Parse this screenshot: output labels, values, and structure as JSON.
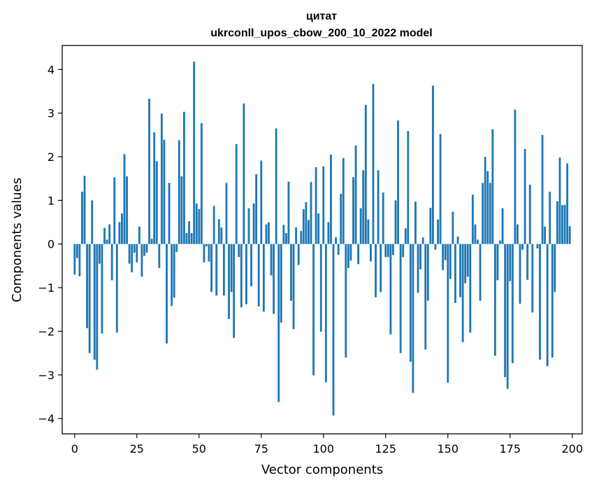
{
  "chart_data": {
    "type": "bar",
    "title_line1": "цитат",
    "title_line2": "ukrconll_upos_cbow_200_10_2022 model",
    "xlabel": "Vector components",
    "ylabel": "Components values",
    "xlim": [
      -5,
      204
    ],
    "ylim": [
      -4.35,
      4.55
    ],
    "x_ticks": [
      0,
      25,
      50,
      75,
      100,
      125,
      150,
      175,
      200
    ],
    "x_tick_labels": [
      "0",
      "25",
      "50",
      "75",
      "100",
      "125",
      "150",
      "175",
      "200"
    ],
    "y_ticks": [
      -4,
      -3,
      -2,
      -1,
      0,
      1,
      2,
      3,
      4
    ],
    "y_tick_labels": [
      "−4",
      "−3",
      "−2",
      "−1",
      "0",
      "1",
      "2",
      "3",
      "4"
    ],
    "bar_color": "#1f77b4",
    "grid": false,
    "values": [
      -0.7,
      -0.32,
      -0.74,
      1.2,
      1.56,
      -1.93,
      -2.5,
      1.0,
      -2.65,
      -2.88,
      -0.45,
      -2.05,
      0.37,
      0.1,
      0.45,
      -0.83,
      1.53,
      -2.03,
      0.5,
      0.7,
      2.06,
      1.55,
      -0.45,
      -0.65,
      -0.2,
      -0.42,
      0.4,
      -0.75,
      -0.27,
      -0.2,
      3.33,
      0.12,
      2.56,
      1.9,
      -0.55,
      2.99,
      2.39,
      -2.28,
      1.4,
      -1.42,
      -1.23,
      -0.18,
      2.38,
      1.55,
      3.03,
      0.25,
      0.52,
      0.25,
      4.18,
      0.93,
      0.8,
      2.77,
      -0.42,
      -0.05,
      -0.4,
      -1.1,
      0.87,
      -1.18,
      0.57,
      0.38,
      -1.18,
      1.4,
      -1.72,
      -1.1,
      -2.15,
      2.29,
      -0.3,
      -1.45,
      3.22,
      -1.38,
      0.82,
      -0.97,
      0.93,
      1.6,
      -1.43,
      1.91,
      -1.55,
      0.45,
      0.5,
      -0.72,
      -1.6,
      2.65,
      -3.62,
      -1.8,
      0.44,
      0.25,
      1.43,
      -1.3,
      -1.95,
      0.38,
      -0.48,
      0.3,
      0.8,
      0.96,
      0.55,
      1.42,
      -3.01,
      1.76,
      0.7,
      -2.01,
      1.78,
      -3.17,
      0.5,
      2.05,
      -3.93,
      0.15,
      -0.25,
      1.15,
      1.97,
      -2.6,
      -0.55,
      -0.38,
      1.53,
      2.26,
      -0.46,
      0.82,
      1.69,
      3.19,
      0.56,
      -0.4,
      3.67,
      -1.22,
      1.69,
      -1.1,
      1.18,
      -0.3,
      -0.3,
      -2.07,
      -0.25,
      1.0,
      2.83,
      -2.5,
      -0.3,
      0.36,
      2.59,
      -2.7,
      -3.41,
      0.97,
      -1.12,
      -0.58,
      0.15,
      -2.42,
      -1.3,
      0.83,
      3.63,
      -0.13,
      0.56,
      2.52,
      -0.6,
      -0.37,
      -3.18,
      -0.8,
      0.74,
      -1.35,
      0.17,
      -1.22,
      -2.25,
      -0.9,
      -0.75,
      -2.03,
      1.13,
      0.45,
      0.1,
      -1.3,
      1.4,
      2.0,
      1.67,
      1.4,
      2.63,
      -2.56,
      -0.83,
      0.08,
      0.82,
      -3.05,
      -3.32,
      -0.85,
      -2.73,
      3.08,
      0.45,
      -1.37,
      -0.13,
      2.18,
      -0.82,
      1.36,
      -1.57,
      0.0,
      -0.1,
      -2.65,
      2.5,
      0.4,
      -2.8,
      1.2,
      -2.6,
      -1.1,
      0.98,
      1.98,
      0.89,
      0.9,
      1.85,
      0.41
    ]
  }
}
